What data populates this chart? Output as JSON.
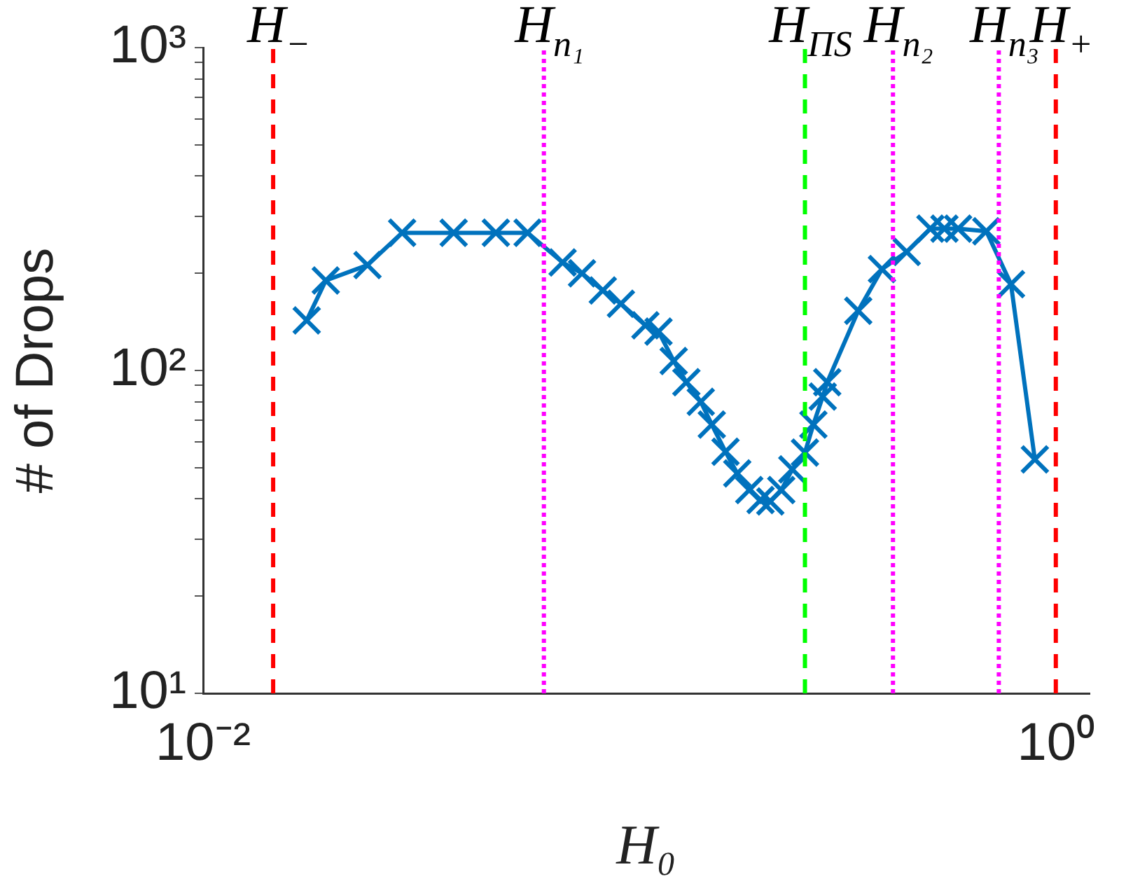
{
  "chart_data": {
    "type": "line",
    "xlabel": "H₀",
    "ylabel": "# of Drops",
    "log": "xy",
    "grid": false,
    "legend": false,
    "marker": "cross",
    "line_style": "solid",
    "xlim": [
      0.01,
      1.2
    ],
    "xticks": [
      {
        "value": 0.01,
        "label": "10⁻²"
      },
      {
        "value": 1,
        "label": "10⁰"
      }
    ],
    "ylim": [
      10,
      1000
    ],
    "yticks": [
      {
        "value": 10,
        "label": "10¹"
      },
      {
        "value": 20,
        "label": null
      },
      {
        "value": 30,
        "label": null
      },
      {
        "value": 40,
        "label": null
      },
      {
        "value": 50,
        "label": null
      },
      {
        "value": 60,
        "label": null
      },
      {
        "value": 70,
        "label": null
      },
      {
        "value": 80,
        "label": null
      },
      {
        "value": 90,
        "label": null
      },
      {
        "value": 100,
        "label": "10²"
      },
      {
        "value": 200,
        "label": null
      },
      {
        "value": 300,
        "label": null
      },
      {
        "value": 400,
        "label": null
      },
      {
        "value": 500,
        "label": null
      },
      {
        "value": 600,
        "label": null
      },
      {
        "value": 700,
        "label": null
      },
      {
        "value": 800,
        "label": null
      },
      {
        "value": 900,
        "label": null
      },
      {
        "value": 1000,
        "label": "10³"
      }
    ],
    "series": [
      {
        "color": "#0072bd",
        "x": [
          0.0175,
          0.0194,
          0.0243,
          0.0293,
          0.0387,
          0.0486,
          0.0577,
          0.0697,
          0.0774,
          0.0866,
          0.0955,
          0.109,
          0.117,
          0.127,
          0.136,
          0.147,
          0.156,
          0.168,
          0.179,
          0.191,
          0.203,
          0.214,
          0.227,
          0.241,
          0.258,
          0.27,
          0.284,
          0.291,
          0.344,
          0.391,
          0.447,
          0.508,
          0.548,
          0.59,
          0.687,
          0.785,
          0.893
        ],
        "values": [
          143,
          190,
          212,
          267,
          267,
          267,
          267,
          216,
          200,
          177,
          161,
          138,
          132,
          107,
          92,
          80,
          68,
          56,
          48,
          42.6,
          39.7,
          39.3,
          42.6,
          49.4,
          55.7,
          68,
          83,
          92,
          153,
          206,
          233,
          275,
          275,
          275,
          270,
          185,
          53
        ]
      }
    ],
    "ref_lines": [
      {
        "axis": "x",
        "value": 0.0146,
        "label": "H$_{−}$",
        "color": "#ff0000",
        "line_style": "dashed"
      },
      {
        "axis": "x",
        "value": 0.063,
        "label": "H$_{n₁}$",
        "color": "#ff00ff",
        "line_style": "dotted"
      },
      {
        "axis": "x",
        "value": 0.258,
        "label": "H$_{ΠS}$",
        "color": "#00ff00",
        "line_style": "dashed"
      },
      {
        "axis": "x",
        "value": 0.415,
        "label": "H$_{n₂}$",
        "color": "#ff00ff",
        "line_style": "dotted"
      },
      {
        "axis": "x",
        "value": 0.735,
        "label": "H$_{n₃}$",
        "color": "#ff00ff",
        "line_style": "dotted"
      },
      {
        "axis": "x",
        "value": 1,
        "label": "H$_{+}$",
        "color": "#ff0000",
        "line_style": "dashed"
      }
    ]
  }
}
